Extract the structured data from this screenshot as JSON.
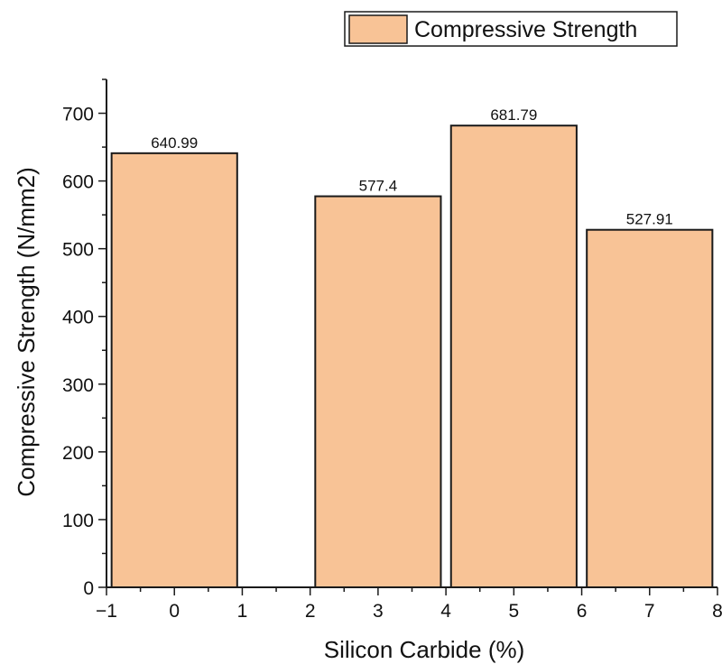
{
  "chart_data": {
    "type": "bar",
    "legend": {
      "label": "Compressive Strength",
      "position": "top-right"
    },
    "xlabel": "Silicon Carbide (%)",
    "ylabel": "Compressive Strength (N/mm2)",
    "x": [
      0,
      3,
      5,
      7
    ],
    "values": [
      640.99,
      577.4,
      681.79,
      527.91
    ],
    "data_labels": [
      "640.99",
      "577.4",
      "681.79",
      "527.91"
    ],
    "bar_width": 1.85,
    "xlim": [
      -1,
      8
    ],
    "ylim": [
      0,
      750
    ],
    "xticks": [
      -1,
      0,
      1,
      2,
      3,
      4,
      5,
      6,
      7,
      8
    ],
    "xtick_labels": [
      "−1",
      "0",
      "1",
      "2",
      "3",
      "4",
      "5",
      "6",
      "7",
      "8"
    ],
    "yticks": [
      0,
      100,
      200,
      300,
      400,
      500,
      600,
      700
    ],
    "ytick_labels": [
      "0",
      "100",
      "200",
      "300",
      "400",
      "500",
      "600",
      "700"
    ],
    "grid": false,
    "colors": {
      "bar_fill": "#F8C396",
      "bar_stroke": "#1a1a1a",
      "axis": "#1a1a1a"
    }
  }
}
